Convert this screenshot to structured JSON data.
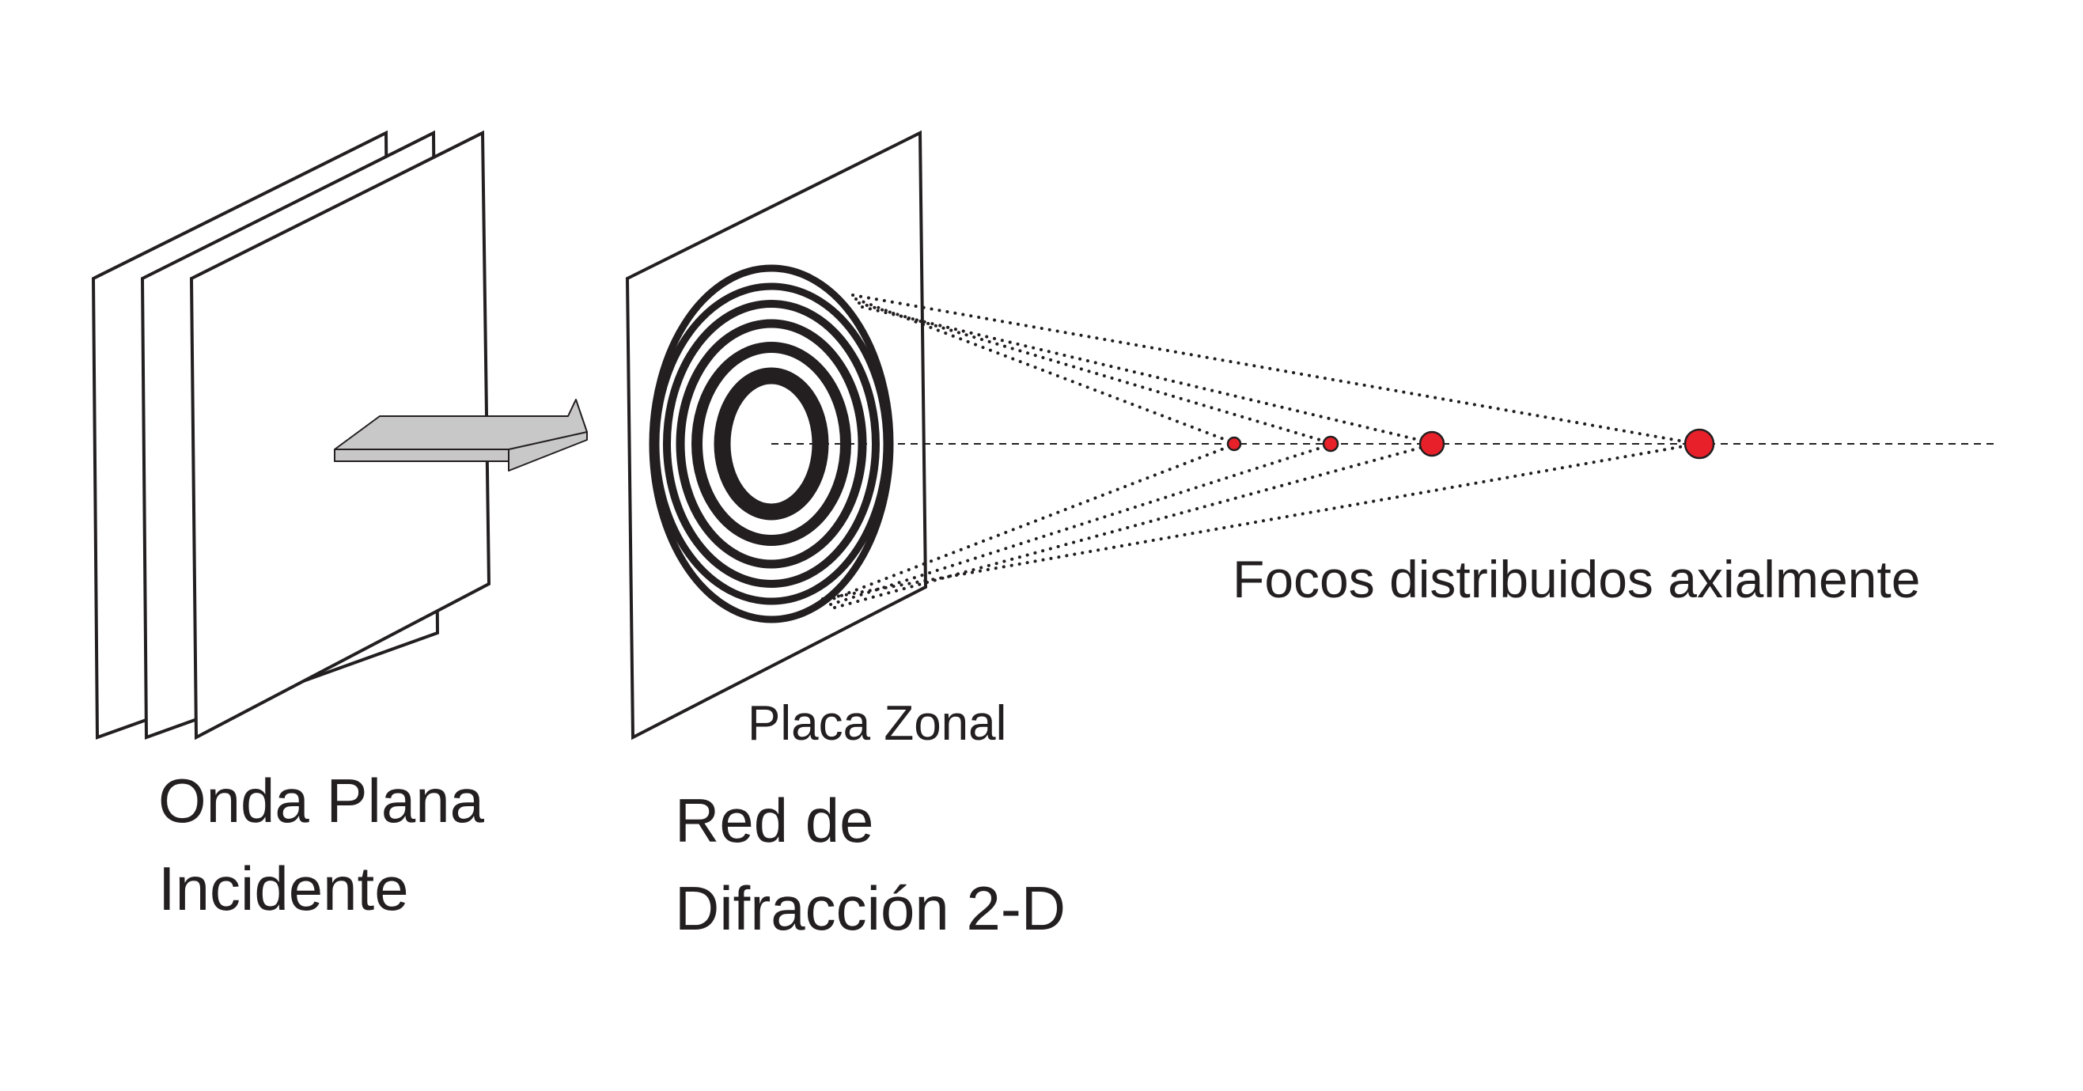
{
  "labels": {
    "incident_wave": [
      "Onda Plana",
      "Incidente"
    ],
    "grating": [
      "Red de",
      "Difracción 2-D"
    ],
    "zone_plate": "Placa Zonal",
    "foci": "Focos distribuidos axialmente"
  },
  "colors": {
    "stroke": "#231f20",
    "focus_fill": "#e8202a",
    "arrow_fill": "#c8c8c8",
    "background": "#ffffff"
  },
  "foci_count": 4,
  "zone_plate_rings": 6
}
